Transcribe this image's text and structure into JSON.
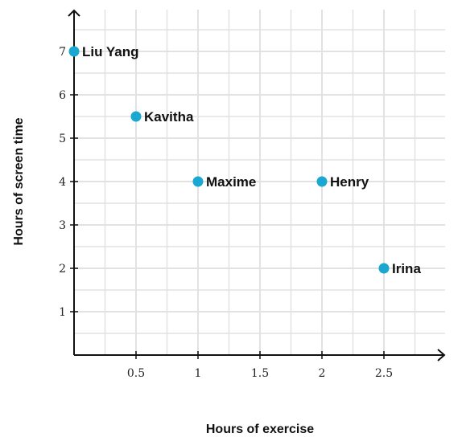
{
  "chart_data": {
    "type": "scatter",
    "title": "",
    "xlabel": "Hours of exercise",
    "ylabel": "Hours of screen time",
    "xlim": [
      0,
      3
    ],
    "ylim": [
      0,
      8
    ],
    "grid": true,
    "x_ticks": [
      0.5,
      1,
      1.5,
      2,
      2.5
    ],
    "x_tick_labels": [
      "0.5",
      "1",
      "1.5",
      "2",
      "2.5"
    ],
    "y_ticks": [
      1,
      2,
      3,
      4,
      5,
      6,
      7
    ],
    "y_tick_labels": [
      "1",
      "2",
      "3",
      "4",
      "5",
      "6",
      "7"
    ],
    "points": [
      {
        "label": "Liu Yang",
        "x": 0,
        "y": 7
      },
      {
        "label": "Kavitha",
        "x": 0.5,
        "y": 5.5
      },
      {
        "label": "Maxime",
        "x": 1,
        "y": 4
      },
      {
        "label": "Henry",
        "x": 2,
        "y": 4
      },
      {
        "label": "Irina",
        "x": 2.5,
        "y": 2
      }
    ],
    "colors": {
      "point": "#1aa7d0",
      "grid": "#e2e2e2",
      "axis": "#111111"
    }
  }
}
